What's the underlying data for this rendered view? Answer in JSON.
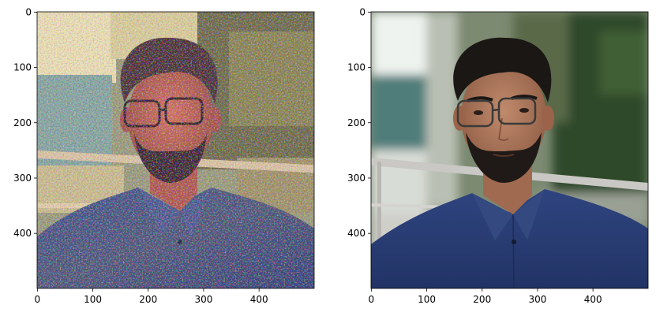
{
  "chart_data": [
    {
      "type": "image",
      "image_content": "stylized photo of a man with glasses and dark beard wearing a blue shirt, mosaic-like texture",
      "xlim": [
        0,
        499
      ],
      "ylim": [
        499,
        0
      ],
      "xticks": [
        0,
        100,
        200,
        300,
        400
      ],
      "yticks": [
        0,
        100,
        200,
        300,
        400
      ],
      "grid": false
    },
    {
      "type": "image",
      "image_content": "photo of a man with glasses and dark beard wearing a blue shirt, blurred outdoor background",
      "xlim": [
        0,
        499
      ],
      "ylim": [
        499,
        0
      ],
      "xticks": [
        0,
        100,
        200,
        300,
        400
      ],
      "yticks": [
        0,
        100,
        200,
        300,
        400
      ],
      "grid": false
    }
  ],
  "colors": {
    "axes_frame": "#000000",
    "background": "#ffffff",
    "shirt": "#283a72",
    "hair": "#1b1714",
    "skin": "#b07a5e"
  }
}
